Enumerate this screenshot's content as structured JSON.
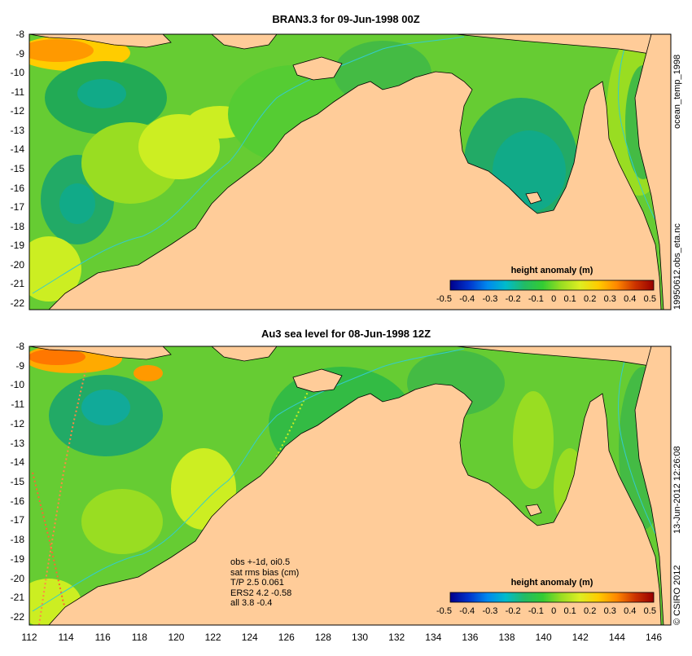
{
  "panels": [
    {
      "title": "BRAN3.3 for 09-Jun-1998 00Z",
      "side_text": [
        "ocean_temp_1998",
        "19950612.obs_eta.nc"
      ]
    },
    {
      "title": "Au3 sea level  for 08-Jun-1998 12Z",
      "side_text": [
        "13-Jun-2012 12:26:08",
        "© CSIRO 2012"
      ],
      "obs_text": [
        "obs +-1d, oi0.5",
        "sat rms bias (cm)",
        "T/P  2.5 0.061",
        "ERS2 4.2 -0.58",
        "all 3.8 -0.4"
      ]
    }
  ],
  "axes": {
    "lat_ticks": [
      "-8",
      "-9",
      "-10",
      "-11",
      "-12",
      "-13",
      "-14",
      "-15",
      "-16",
      "-17",
      "-18",
      "-19",
      "-20",
      "-21",
      "-22"
    ],
    "lon_ticks": [
      "112",
      "114",
      "116",
      "118",
      "120",
      "122",
      "124",
      "126",
      "128",
      "130",
      "132",
      "134",
      "136",
      "138",
      "140",
      "142",
      "144",
      "146"
    ]
  },
  "colorbar": {
    "title": "height anomaly (m)",
    "ticks": [
      "-0.5",
      "-0.4",
      "-0.3",
      "-0.2",
      "-0.1",
      "0",
      "0.1",
      "0.2",
      "0.3",
      "0.4",
      "0.5"
    ],
    "range": [
      -0.5,
      0.5
    ],
    "colors": [
      "#00008b",
      "#0033cc",
      "#0088ee",
      "#00bbcc",
      "#22bb66",
      "#33cc33",
      "#99dd22",
      "#ddee22",
      "#ffcc00",
      "#ff8800",
      "#cc3300",
      "#990000"
    ]
  },
  "colors": {
    "land": "#ffcc99",
    "coast": "#000000",
    "contour": "#33cccc",
    "sea_base": "#66cc33"
  }
}
